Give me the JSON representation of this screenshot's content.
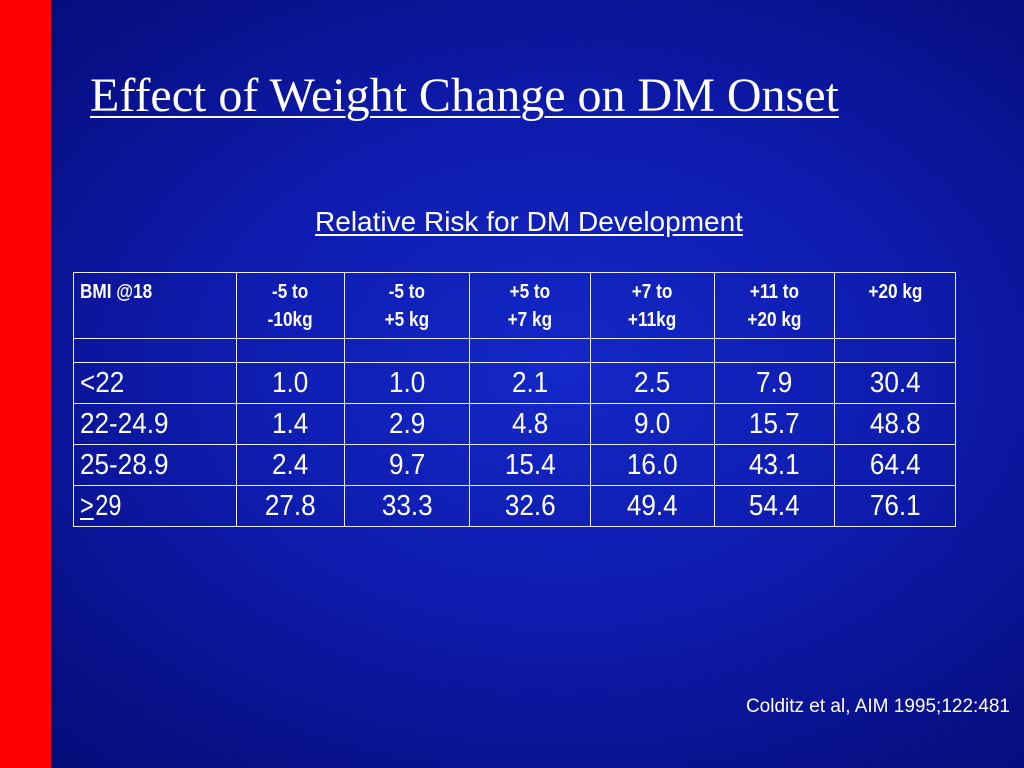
{
  "slide": {
    "title": "Effect of Weight Change on DM Onset",
    "subtitle": "Relative Risk for DM Development",
    "citation": "Colditz et al, AIM 1995;122:481",
    "colors": {
      "accent_bar": "#ff0000",
      "background": "#0e1cae",
      "text": "#ffffff"
    }
  },
  "table": {
    "headers": [
      "BMI @18",
      "-5 to\n-10kg",
      "-5 to\n+5 kg",
      "+5 to\n+7 kg",
      "+7 to\n+11kg",
      "+11 to\n+20 kg",
      "+20 kg"
    ],
    "rows": [
      {
        "label": "<22",
        "values": [
          "1.0",
          "1.0",
          "2.1",
          "2.5",
          "7.9",
          "30.4"
        ]
      },
      {
        "label": "22-24.9",
        "values": [
          "1.4",
          "2.9",
          "4.8",
          "9.0",
          "15.7",
          "48.8"
        ]
      },
      {
        "label": "25-28.9",
        "values": [
          "2.4",
          "9.7",
          "15.4",
          "16.0",
          "43.1",
          "64.4"
        ]
      },
      {
        "label_symbol": ">",
        "label": "29",
        "values": [
          "27.8",
          "33.3",
          "32.6",
          "49.4",
          "54.4",
          "76.1"
        ]
      }
    ]
  }
}
